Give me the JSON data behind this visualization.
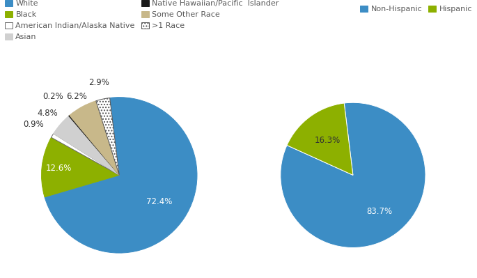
{
  "pie1_values": [
    72.4,
    12.6,
    0.9,
    4.8,
    0.2,
    6.2,
    2.9
  ],
  "pie1_colors": [
    "#3c8dc5",
    "#8db000",
    "#ffffff",
    "#d0d0d0",
    "#1a1a1a",
    "#c8b88a",
    "#ffffff"
  ],
  "pie1_hatch": [
    "",
    "",
    "",
    "",
    "",
    "",
    "...."
  ],
  "pie1_edge": [
    "#3c8dc5",
    "#8db000",
    "#666666",
    "#d0d0d0",
    "#1a1a1a",
    "#c8b88a",
    "#555555"
  ],
  "pie1_startangle": 97,
  "pie1_label_r": [
    0.62,
    0.78,
    1.28,
    1.22,
    1.32,
    1.15,
    1.22
  ],
  "pie1_label_col": [
    "white",
    "white",
    "#333333",
    "#333333",
    "#333333",
    "#333333",
    "#333333"
  ],
  "pie2_values": [
    83.7,
    16.3
  ],
  "pie2_colors": [
    "#3c8dc5",
    "#8db000"
  ],
  "pie2_startangle": 97,
  "pie2_label_r": [
    0.62,
    0.6
  ],
  "pie2_label_col": [
    "white",
    "#333333"
  ],
  "legend1": [
    {
      "label": "White",
      "color": "#3c8dc5",
      "hatch": "",
      "edge": "#3c8dc5"
    },
    {
      "label": "Black",
      "color": "#8db000",
      "hatch": "",
      "edge": "#8db000"
    },
    {
      "label": "American Indian/Alaska Native",
      "color": "#ffffff",
      "hatch": "",
      "edge": "#666666"
    },
    {
      "label": "Asian",
      "color": "#d0d0d0",
      "hatch": "",
      "edge": "#d0d0d0"
    },
    {
      "label": "Native Hawaiian/Pacific  Islander",
      "color": "#1a1a1a",
      "hatch": "",
      "edge": "#1a1a1a"
    },
    {
      "label": "Some Other Race",
      "color": "#c8b88a",
      "hatch": "",
      "edge": "#c8b88a"
    },
    {
      "label": ">1 Race",
      "color": "#ffffff",
      "hatch": "....",
      "edge": "#555555"
    }
  ],
  "legend2": [
    {
      "label": "Non-Hispanic",
      "color": "#3c8dc5"
    },
    {
      "label": "Hispanic",
      "color": "#8db000"
    }
  ],
  "text_color": "#595959",
  "bg_color": "#ffffff",
  "label_fontsize": 8.5,
  "legend_fontsize": 8
}
